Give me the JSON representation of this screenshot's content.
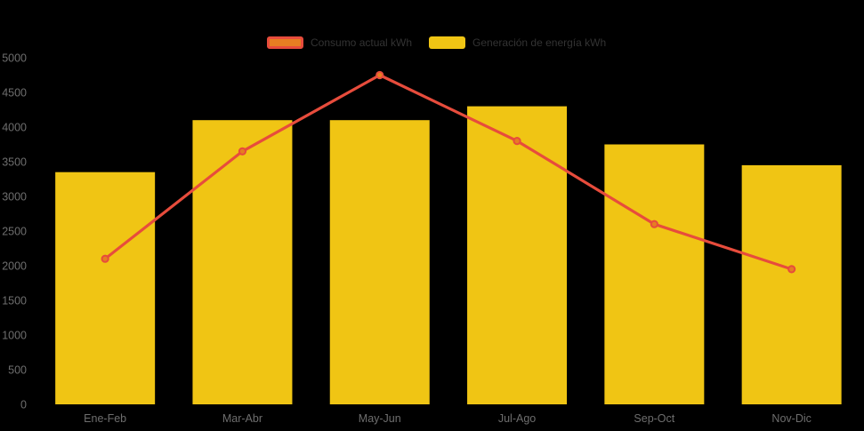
{
  "chart_data": {
    "type": "bar",
    "title": "",
    "xlabel": "",
    "ylabel": "",
    "categories": [
      "Ene-Feb",
      "Mar-Abr",
      "May-Jun",
      "Jul-Ago",
      "Sep-Oct",
      "Nov-Dic"
    ],
    "series": [
      {
        "name": "Consumo actual kWh",
        "type": "line",
        "color": "#E74C3C",
        "marker_color": "#E67E22",
        "values": [
          2100,
          3650,
          4750,
          3800,
          2600,
          1950
        ]
      },
      {
        "name": "Generación de energía kWh",
        "type": "bar",
        "color": "#F0C514",
        "values": [
          3350,
          4100,
          4100,
          4300,
          3750,
          3450
        ]
      }
    ],
    "ylim": [
      0,
      5000
    ],
    "ytick_step": 500,
    "yticks": [
      0,
      500,
      1000,
      1500,
      2000,
      2500,
      3000,
      3500,
      4000,
      4500,
      5000
    ],
    "grid": false,
    "legend_position": "top",
    "background_color": "#000000",
    "axis_label_color": "#6E6E6E",
    "legend_text_color": "#333333"
  }
}
